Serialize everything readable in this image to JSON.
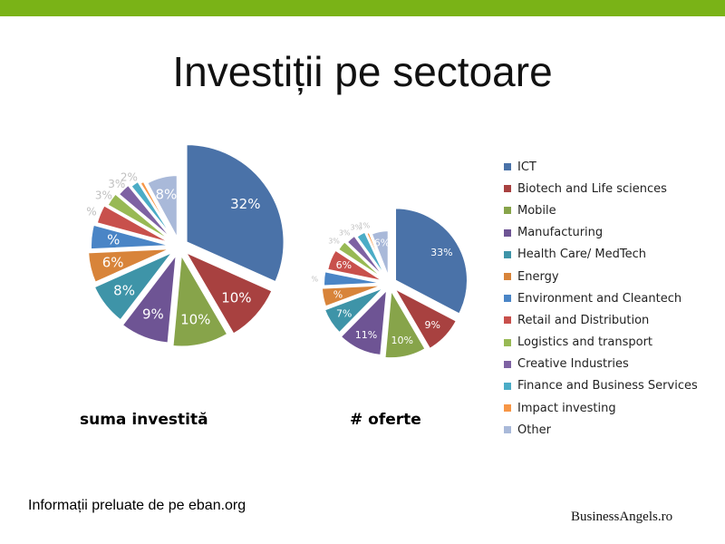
{
  "slide": {
    "title": "Investiții pe sectoare",
    "source_note": "Informații preluate de pe eban.org",
    "logo_text": "BusinessAngels.ro",
    "accent_bar_color": "#7ab317"
  },
  "legend": {
    "items": [
      {
        "label": "ICT",
        "color": "#4a72a8"
      },
      {
        "label": "Biotech and Life sciences",
        "color": "#a84140"
      },
      {
        "label": "Mobile",
        "color": "#87a44a"
      },
      {
        "label": "Manufacturing",
        "color": "#6e5494"
      },
      {
        "label": "Health Care/ MedTech",
        "color": "#3e94a8"
      },
      {
        "label": "Energy",
        "color": "#d8843a"
      },
      {
        "label": "Environment and Cleantech",
        "color": "#4a85c6"
      },
      {
        "label": "Retail and Distribution",
        "color": "#c8504c"
      },
      {
        "label": "Logistics and transport",
        "color": "#98b954"
      },
      {
        "label": "Creative Industries",
        "color": "#7e62a3"
      },
      {
        "label": "Finance and Business Services",
        "color": "#4bacc6"
      },
      {
        "label": "Impact investing",
        "color": "#f79646"
      },
      {
        "label": "Other",
        "color": "#a9b9d9"
      }
    ]
  },
  "chart_data": [
    {
      "type": "pie",
      "title": "suma investită",
      "categories": [
        "ICT",
        "Biotech and Life sciences",
        "Mobile",
        "Manufacturing",
        "Health Care/ MedTech",
        "Energy",
        "Environment and Cleantech",
        "Retail and Distribution",
        "Logistics and transport",
        "Creative Industries",
        "Finance and Business Services",
        "Impact investing",
        "Other"
      ],
      "values": [
        32,
        10,
        10,
        9,
        8,
        6,
        5,
        4,
        3,
        3,
        2,
        1,
        8
      ],
      "data_labels": [
        "32%",
        "10%",
        "10%",
        "9%",
        "8%",
        "6%",
        "%",
        "%",
        "3%",
        "3%",
        "2%",
        "",
        "8%"
      ]
    },
    {
      "type": "pie",
      "title": "# oferte",
      "categories": [
        "ICT",
        "Biotech and Life sciences",
        "Mobile",
        "Manufacturing",
        "Health Care/ MedTech",
        "Energy",
        "Environment and Cleantech",
        "Retail and Distribution",
        "Logistics and transport",
        "Creative Industries",
        "Finance and Business Services",
        "Impact investing",
        "Other"
      ],
      "values": [
        33,
        9,
        10,
        11,
        7,
        5,
        4,
        6,
        3,
        3,
        3,
        1,
        6
      ],
      "data_labels": [
        "33%",
        "9%",
        "10%",
        "11%",
        "7%",
        "%",
        "%",
        "6%",
        "3%",
        "3%",
        "3%",
        "1%",
        "6%"
      ]
    }
  ]
}
